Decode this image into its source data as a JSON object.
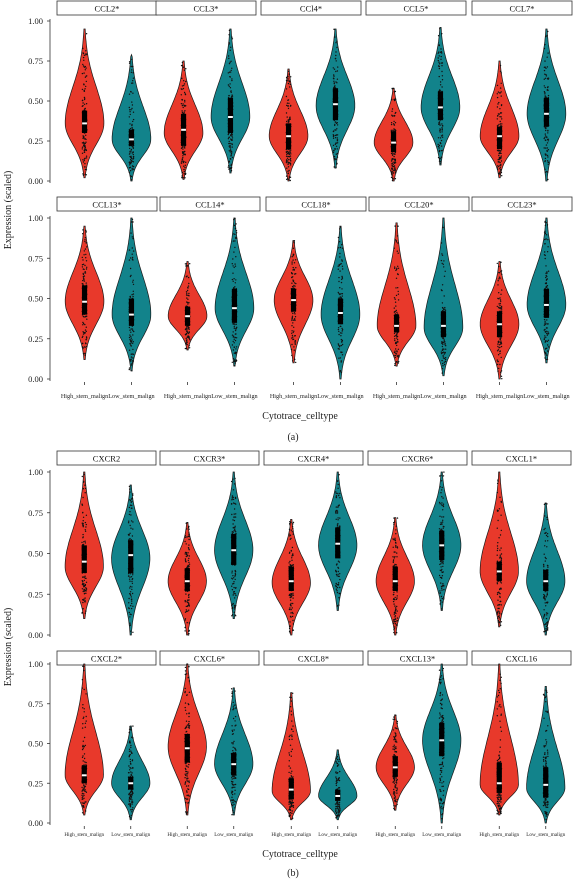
{
  "colors": {
    "high": "#e8392b",
    "low": "#12838b",
    "outline": "#1a1a1a",
    "dots": "#111111"
  },
  "chart_data": [
    {
      "type": "violin",
      "panel_label": "(a)",
      "xlabel": "Cytotrace_celltype",
      "ylabel": "Expression (scaled)",
      "ylim": [
        0,
        1
      ],
      "y_ticks": [
        "0.00",
        "0.25",
        "0.50",
        "0.75",
        "1.00"
      ],
      "categories": [
        "High_stem_malign",
        "Low_stem_malign"
      ],
      "facets": [
        {
          "name": "CCL2*",
          "high": {
            "min": 0.02,
            "q1": 0.3,
            "median": 0.36,
            "q3": 0.44,
            "max": 0.95,
            "mode": 0.36
          },
          "low": {
            "min": 0.0,
            "q1": 0.22,
            "median": 0.26,
            "q3": 0.32,
            "max": 0.79,
            "mode": 0.26
          }
        },
        {
          "name": "CCL3*",
          "high": {
            "min": 0.01,
            "q1": 0.22,
            "median": 0.32,
            "q3": 0.42,
            "max": 0.75,
            "mode": 0.3
          },
          "low": {
            "min": 0.05,
            "q1": 0.3,
            "median": 0.4,
            "q3": 0.52,
            "max": 0.95,
            "mode": 0.4
          }
        },
        {
          "name": "CCl4*",
          "high": {
            "min": 0.0,
            "q1": 0.2,
            "median": 0.28,
            "q3": 0.36,
            "max": 0.7,
            "mode": 0.28
          },
          "low": {
            "min": 0.08,
            "q1": 0.38,
            "median": 0.48,
            "q3": 0.58,
            "max": 0.95,
            "mode": 0.47
          }
        },
        {
          "name": "CCL5*",
          "high": {
            "min": 0.0,
            "q1": 0.18,
            "median": 0.24,
            "q3": 0.31,
            "max": 0.58,
            "mode": 0.24
          },
          "low": {
            "min": 0.1,
            "q1": 0.38,
            "median": 0.46,
            "q3": 0.56,
            "max": 0.96,
            "mode": 0.46
          }
        },
        {
          "name": "CCL7*",
          "high": {
            "min": 0.02,
            "q1": 0.2,
            "median": 0.28,
            "q3": 0.34,
            "max": 0.75,
            "mode": 0.28
          },
          "low": {
            "min": 0.0,
            "q1": 0.34,
            "median": 0.42,
            "q3": 0.52,
            "max": 0.95,
            "mode": 0.42
          }
        },
        {
          "name": "CCL13*",
          "high": {
            "min": 0.12,
            "q1": 0.4,
            "median": 0.48,
            "q3": 0.58,
            "max": 0.95,
            "mode": 0.48
          },
          "low": {
            "min": 0.05,
            "q1": 0.33,
            "median": 0.4,
            "q3": 0.5,
            "max": 1.0,
            "mode": 0.4
          }
        },
        {
          "name": "CCL14*",
          "high": {
            "min": 0.18,
            "q1": 0.33,
            "median": 0.39,
            "q3": 0.45,
            "max": 0.73,
            "mode": 0.39
          },
          "low": {
            "min": 0.08,
            "q1": 0.35,
            "median": 0.44,
            "q3": 0.56,
            "max": 1.0,
            "mode": 0.44
          }
        },
        {
          "name": "CCL18*",
          "high": {
            "min": 0.1,
            "q1": 0.42,
            "median": 0.49,
            "q3": 0.56,
            "max": 0.86,
            "mode": 0.49
          },
          "low": {
            "min": 0.0,
            "q1": 0.34,
            "median": 0.41,
            "q3": 0.5,
            "max": 0.95,
            "mode": 0.4
          }
        },
        {
          "name": "CCL20*",
          "high": {
            "min": 0.08,
            "q1": 0.29,
            "median": 0.33,
            "q3": 0.4,
            "max": 0.97,
            "mode": 0.33
          },
          "low": {
            "min": 0.02,
            "q1": 0.26,
            "median": 0.33,
            "q3": 0.42,
            "max": 1.0,
            "mode": 0.32
          }
        },
        {
          "name": "CCL23*",
          "high": {
            "min": 0.0,
            "q1": 0.26,
            "median": 0.34,
            "q3": 0.42,
            "max": 0.73,
            "mode": 0.34
          },
          "low": {
            "min": 0.1,
            "q1": 0.38,
            "median": 0.46,
            "q3": 0.56,
            "max": 1.0,
            "mode": 0.46
          }
        }
      ]
    },
    {
      "type": "violin",
      "panel_label": "(b)",
      "xlabel": "Cytotrace_celltype",
      "ylabel": "Expression (scaled)",
      "ylim": [
        0,
        1
      ],
      "y_ticks": [
        "0.00",
        "0.25",
        "0.50",
        "0.75",
        "1.00"
      ],
      "categories": [
        "High_stem_malign",
        "Low_stem_malign"
      ],
      "facets": [
        {
          "name": "CXCR2",
          "high": {
            "min": 0.1,
            "q1": 0.38,
            "median": 0.45,
            "q3": 0.55,
            "max": 1.0,
            "mode": 0.42
          },
          "low": {
            "min": 0.0,
            "q1": 0.38,
            "median": 0.49,
            "q3": 0.58,
            "max": 0.92,
            "mode": 0.47
          }
        },
        {
          "name": "CXCR3*",
          "high": {
            "min": 0.0,
            "q1": 0.27,
            "median": 0.33,
            "q3": 0.41,
            "max": 0.69,
            "mode": 0.33
          },
          "low": {
            "min": 0.1,
            "q1": 0.43,
            "median": 0.52,
            "q3": 0.62,
            "max": 1.0,
            "mode": 0.52
          }
        },
        {
          "name": "CXCR4*",
          "high": {
            "min": 0.0,
            "q1": 0.27,
            "median": 0.33,
            "q3": 0.42,
            "max": 0.71,
            "mode": 0.32
          },
          "low": {
            "min": 0.15,
            "q1": 0.47,
            "median": 0.56,
            "q3": 0.66,
            "max": 1.0,
            "mode": 0.55
          }
        },
        {
          "name": "CXCR6*",
          "high": {
            "min": 0.0,
            "q1": 0.27,
            "median": 0.33,
            "q3": 0.42,
            "max": 0.72,
            "mode": 0.33
          },
          "low": {
            "min": 0.15,
            "q1": 0.46,
            "median": 0.55,
            "q3": 0.64,
            "max": 1.0,
            "mode": 0.55
          }
        },
        {
          "name": "CXCL1*",
          "high": {
            "min": 0.05,
            "q1": 0.33,
            "median": 0.39,
            "q3": 0.45,
            "max": 1.0,
            "mode": 0.39
          },
          "low": {
            "min": 0.0,
            "q1": 0.27,
            "median": 0.33,
            "q3": 0.4,
            "max": 0.81,
            "mode": 0.33
          }
        },
        {
          "name": "CXCL2*",
          "high": {
            "min": 0.05,
            "q1": 0.25,
            "median": 0.3,
            "q3": 0.36,
            "max": 1.0,
            "mode": 0.3
          },
          "low": {
            "min": 0.02,
            "q1": 0.21,
            "median": 0.25,
            "q3": 0.29,
            "max": 0.61,
            "mode": 0.25
          }
        },
        {
          "name": "CXCL6*",
          "high": {
            "min": 0.05,
            "q1": 0.38,
            "median": 0.47,
            "q3": 0.56,
            "max": 1.0,
            "mode": 0.48
          },
          "low": {
            "min": 0.05,
            "q1": 0.3,
            "median": 0.37,
            "q3": 0.44,
            "max": 0.85,
            "mode": 0.37
          }
        },
        {
          "name": "CXCL8*",
          "high": {
            "min": 0.02,
            "q1": 0.15,
            "median": 0.21,
            "q3": 0.28,
            "max": 0.82,
            "mode": 0.2
          },
          "low": {
            "min": 0.02,
            "q1": 0.14,
            "median": 0.17,
            "q3": 0.21,
            "max": 0.46,
            "mode": 0.17
          }
        },
        {
          "name": "CXCL13*",
          "high": {
            "min": 0.08,
            "q1": 0.29,
            "median": 0.35,
            "q3": 0.42,
            "max": 0.68,
            "mode": 0.35
          },
          "low": {
            "min": 0.0,
            "q1": 0.42,
            "median": 0.52,
            "q3": 0.63,
            "max": 1.0,
            "mode": 0.52
          }
        },
        {
          "name": "CXCL16",
          "high": {
            "min": 0.05,
            "q1": 0.19,
            "median": 0.25,
            "q3": 0.38,
            "max": 1.0,
            "mode": 0.24
          },
          "low": {
            "min": 0.0,
            "q1": 0.16,
            "median": 0.24,
            "q3": 0.35,
            "max": 0.86,
            "mode": 0.22
          }
        }
      ]
    }
  ]
}
